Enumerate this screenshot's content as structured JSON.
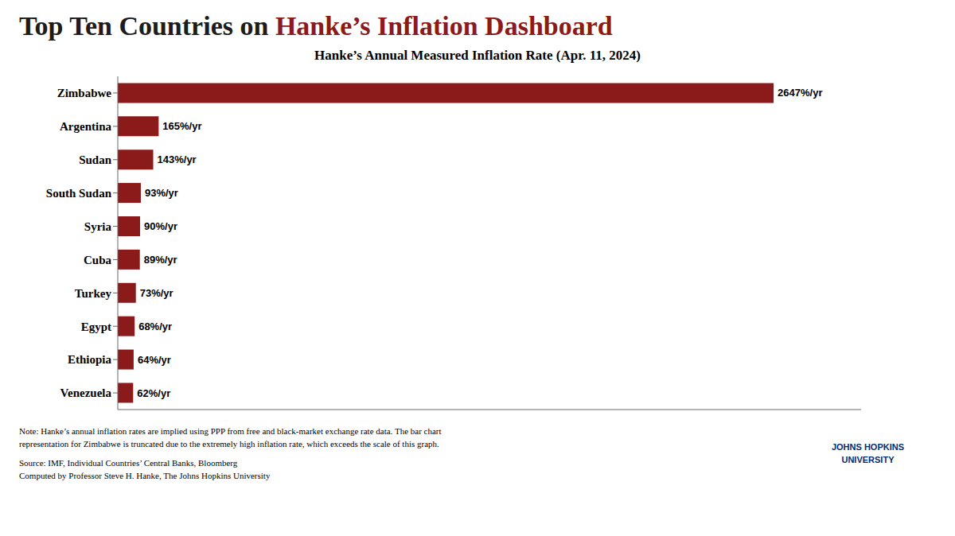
{
  "chart_data": {
    "type": "bar",
    "orientation": "horizontal",
    "title": [
      {
        "text": "Top Ten Countries on ",
        "color": "#1C1C1C"
      },
      {
        "text": "Hanke’s Inflation Dashboard",
        "color": "#8B1A1A"
      }
    ],
    "subtitle": "Hanke’s Annual Measured Inflation Rate (Apr. 11, 2024)",
    "categories": [
      "Zimbabwe",
      "Argentina",
      "Sudan",
      "South Sudan",
      "Syria",
      "Cuba",
      "Turkey",
      "Egypt",
      "Ethiopia",
      "Venezuela"
    ],
    "values": [
      2647,
      165,
      143,
      93,
      90,
      89,
      73,
      68,
      64,
      62
    ],
    "value_labels": [
      "2647%/yr",
      "165%/yr",
      "143%/yr",
      "93%/yr",
      "90%/yr",
      "89%/yr",
      "73%/yr",
      "68%/yr",
      "64%/yr",
      "62%/yr"
    ],
    "data_labels": true,
    "color": "#8B1A1A",
    "xlim": [
      0,
      3000
    ],
    "grid": false,
    "tick_labels": "y",
    "annotations": [
      "Note: Hanke’s annual inflation rates are implied using PPP from free and black-market exchange rate data. The bar chart",
      "representation for Zimbabwe is truncated due to the extremely high inflation rate, which exceeds the scale of this graph.",
      "Source: IMF, Individual Countries’ Central Banks, Bloomberg",
      "Computed by Professor Steve H. Hanke, The Johns Hopkins University",
      "JOHNS HOPKINS",
      "UNIVERSITY"
    ]
  }
}
